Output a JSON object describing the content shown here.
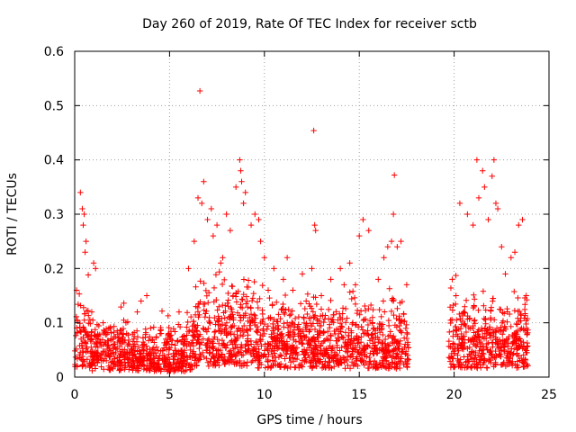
{
  "chart_data": {
    "type": "scatter",
    "title": "Day 260 of 2019, Rate Of TEC Index for receiver sctb",
    "xlabel": "GPS time / hours",
    "ylabel": "ROTI / TECUs",
    "xlim": [
      0,
      25
    ],
    "ylim": [
      0,
      0.6
    ],
    "xticks": [
      0,
      5,
      10,
      15,
      20,
      25
    ],
    "xtick_labels": [
      "0",
      "5",
      "10",
      "15",
      "20",
      "25"
    ],
    "yticks": [
      0,
      0.1,
      0.2,
      0.3,
      0.4,
      0.5,
      0.6
    ],
    "ytick_labels": [
      "0",
      "0.1",
      "0.2",
      "0.3",
      "0.4",
      "0.5",
      "0.6"
    ],
    "grid": true,
    "marker": "+",
    "series_color": "#ff0000",
    "data_gap_hours": [
      17.6,
      19.7
    ],
    "series": [
      {
        "name": "ROTI",
        "x": [
          0.1,
          0.3,
          0.4,
          0.45,
          0.5,
          0.55,
          0.6,
          0.9,
          1.0,
          1.1,
          1.5,
          1.8,
          2.5,
          2.7,
          3.3,
          3.5,
          3.8,
          4.0,
          4.5,
          4.8,
          5.5,
          6.0,
          6.3,
          6.5,
          6.6,
          6.7,
          6.8,
          7.0,
          7.2,
          7.3,
          7.5,
          7.7,
          7.8,
          8.0,
          8.2,
          8.5,
          8.7,
          8.75,
          8.8,
          8.9,
          9.0,
          9.3,
          9.5,
          9.7,
          9.8,
          10.0,
          10.2,
          10.5,
          11.0,
          11.2,
          11.5,
          12.0,
          12.2,
          12.5,
          12.6,
          12.65,
          12.7,
          13.0,
          13.5,
          14.0,
          14.2,
          14.5,
          14.8,
          15.0,
          15.2,
          15.5,
          16.0,
          16.3,
          16.5,
          16.7,
          16.8,
          16.85,
          17.0,
          17.2,
          17.5,
          19.9,
          20.1,
          20.3,
          20.5,
          20.7,
          21.0,
          21.2,
          21.3,
          21.5,
          21.6,
          21.8,
          22.0,
          22.1,
          22.2,
          22.3,
          22.5,
          22.7,
          23.0,
          23.2,
          23.4,
          23.6,
          23.8
        ],
        "y": [
          0.16,
          0.34,
          0.31,
          0.28,
          0.3,
          0.23,
          0.25,
          0.12,
          0.21,
          0.2,
          0.1,
          0.09,
          0.08,
          0.1,
          0.12,
          0.14,
          0.15,
          0.09,
          0.08,
          0.07,
          0.12,
          0.2,
          0.25,
          0.33,
          0.527,
          0.32,
          0.36,
          0.29,
          0.31,
          0.26,
          0.28,
          0.21,
          0.22,
          0.3,
          0.27,
          0.35,
          0.4,
          0.38,
          0.36,
          0.32,
          0.34,
          0.28,
          0.3,
          0.29,
          0.25,
          0.22,
          0.16,
          0.2,
          0.18,
          0.22,
          0.16,
          0.19,
          0.14,
          0.2,
          0.454,
          0.28,
          0.27,
          0.15,
          0.18,
          0.2,
          0.17,
          0.21,
          0.17,
          0.26,
          0.29,
          0.27,
          0.18,
          0.22,
          0.24,
          0.25,
          0.3,
          0.372,
          0.24,
          0.25,
          0.17,
          0.18,
          0.15,
          0.32,
          0.12,
          0.3,
          0.28,
          0.4,
          0.33,
          0.38,
          0.35,
          0.29,
          0.37,
          0.4,
          0.32,
          0.31,
          0.24,
          0.19,
          0.22,
          0.23,
          0.28,
          0.29,
          0.15
        ]
      }
    ]
  }
}
